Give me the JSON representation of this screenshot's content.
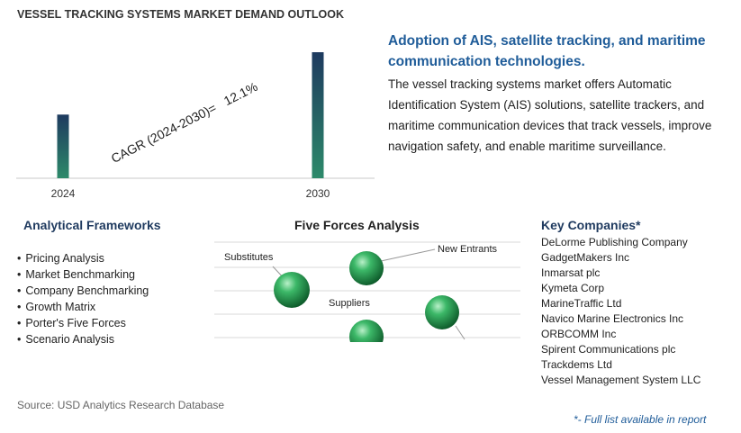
{
  "title": "VESSEL TRACKING SYSTEMS MARKET DEMAND OUTLOOK",
  "cagr": {
    "label": "CAGR (2024-2030)=",
    "value": "12.1%"
  },
  "headline": "Adoption of AIS, satellite tracking, and maritime communication technologies.",
  "description": "The vessel tracking systems market offers Automatic Identification System (AIS) solutions, satellite trackers, and maritime communication devices that track vessels, improve navigation safety, and enable maritime surveillance.",
  "frameworks": {
    "title": "Analytical Frameworks",
    "items": [
      "Pricing Analysis",
      "Market Benchmarking",
      "Company Benchmarking",
      "Growth Matrix",
      "Porter's Five Forces",
      "Scenario Analysis"
    ]
  },
  "five_forces": {
    "title": "Five Forces Analysis",
    "labels": [
      "Substitutes",
      "New Entrants",
      "Suppliers"
    ]
  },
  "companies": {
    "title": "Key Companies*",
    "items": [
      "DeLorme Publishing Company",
      "GadgetMakers Inc",
      "Inmarsat plc",
      "Kymeta Corp",
      "MarineTraffic Ltd",
      "Navico Marine Electronics Inc",
      "ORBCOMM Inc",
      "Spirent Communications plc",
      "Trackdems Ltd",
      "Vessel Management System LLC"
    ]
  },
  "source": "Source: USD Analytics Research Database",
  "footnote": "*- Full list available in report",
  "colors": {
    "bar_top": "#1e3a5f",
    "bar_bottom": "#2d8a6a",
    "headline": "#1f5c99",
    "sphere": "#1f8f4a"
  },
  "chart_data": {
    "type": "bar",
    "categories": [
      "2024",
      "2030"
    ],
    "values": [
      1.0,
      1.98
    ],
    "title": "VESSEL TRACKING SYSTEMS MARKET DEMAND OUTLOOK",
    "annotation": "CAGR (2024-2030)= 12.1%",
    "grid": false,
    "y_axis_shown": false
  }
}
